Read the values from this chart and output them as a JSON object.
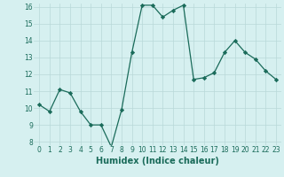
{
  "x": [
    0,
    1,
    2,
    3,
    4,
    5,
    6,
    7,
    8,
    9,
    10,
    11,
    12,
    13,
    14,
    15,
    16,
    17,
    18,
    19,
    20,
    21,
    22,
    23
  ],
  "y": [
    10.2,
    9.8,
    11.1,
    10.9,
    9.8,
    9.0,
    9.0,
    7.7,
    9.9,
    13.3,
    16.1,
    16.1,
    15.4,
    15.8,
    16.1,
    11.7,
    11.8,
    12.1,
    13.3,
    14.0,
    13.3,
    12.9,
    12.2,
    11.7
  ],
  "line_color": "#1a6b5a",
  "marker": "D",
  "marker_size": 2.2,
  "bg_color": "#d6f0f0",
  "grid_color": "#b8d8d8",
  "xlabel": "Humidex (Indice chaleur)",
  "ylim": [
    8,
    16
  ],
  "xlim": [
    -0.5,
    23.5
  ],
  "yticks": [
    8,
    9,
    10,
    11,
    12,
    13,
    14,
    15,
    16
  ],
  "xticks": [
    0,
    1,
    2,
    3,
    4,
    5,
    6,
    7,
    8,
    9,
    10,
    11,
    12,
    13,
    14,
    15,
    16,
    17,
    18,
    19,
    20,
    21,
    22,
    23
  ],
  "tick_label_size": 5.5,
  "xlabel_size": 7.0,
  "linewidth": 0.9
}
